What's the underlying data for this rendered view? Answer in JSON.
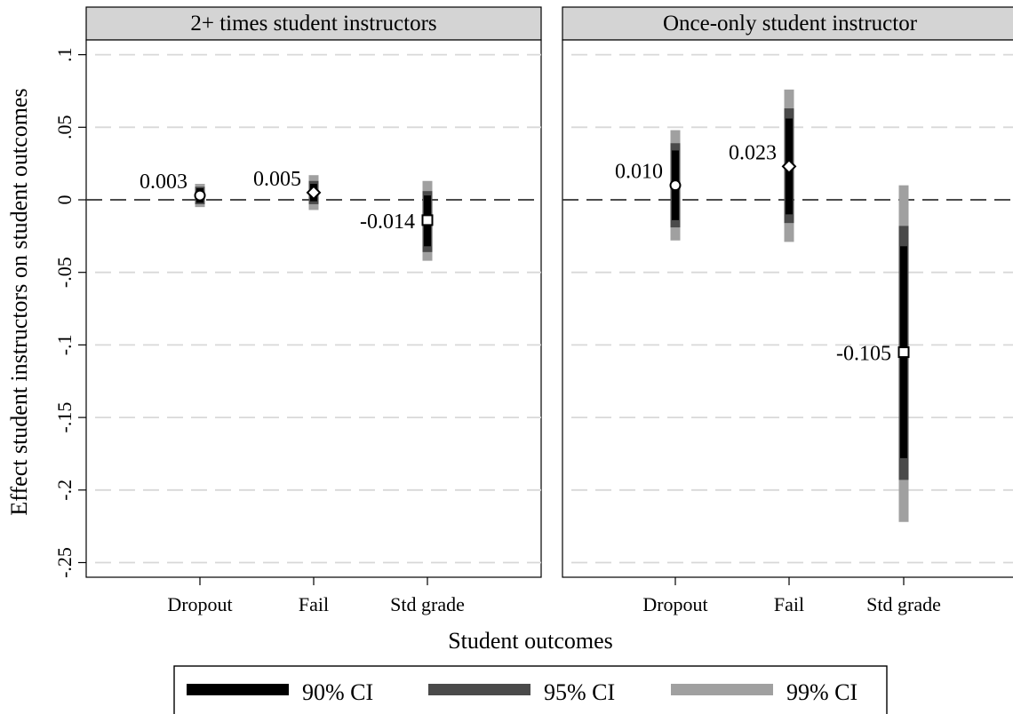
{
  "chart_data": {
    "type": "scatter",
    "ylabel": "Effect student instructors on student outcomes",
    "xlabel": "Student outcomes",
    "categories": [
      "Dropout",
      "Fail",
      "Std grade"
    ],
    "yticks": [
      ".1",
      ".05",
      "0",
      "-.05",
      "-.1",
      "-.15",
      "-.2",
      "-.25"
    ],
    "ylim": [
      -0.26,
      0.11
    ],
    "grid": true,
    "legend_position": "bottom",
    "legend": [
      {
        "label": "90% CI",
        "color": "#000000"
      },
      {
        "label": "95% CI",
        "color": "#4a4a4a"
      },
      {
        "label": "99% CI",
        "color": "#a0a0a0"
      }
    ],
    "panels": [
      {
        "title": "2+ times student instructors",
        "points": [
          {
            "category": "Dropout",
            "marker": "circle",
            "estimate": 0.003,
            "label": "0.003",
            "ci90": [
              -0.002,
              0.008
            ],
            "ci95": [
              -0.003,
              0.009
            ],
            "ci99": [
              -0.005,
              0.011
            ]
          },
          {
            "category": "Fail",
            "marker": "diamond",
            "estimate": 0.005,
            "label": "0.005",
            "ci90": [
              -0.001,
              0.011
            ],
            "ci95": [
              -0.003,
              0.013
            ],
            "ci99": [
              -0.007,
              0.017
            ]
          },
          {
            "category": "Std grade",
            "marker": "square",
            "estimate": -0.014,
            "label": "-0.014",
            "ci90": [
              -0.032,
              0.003
            ],
            "ci95": [
              -0.036,
              0.006
            ],
            "ci99": [
              -0.042,
              0.013
            ]
          }
        ]
      },
      {
        "title": "Once-only student instructor",
        "points": [
          {
            "category": "Dropout",
            "marker": "circle",
            "estimate": 0.01,
            "label": "0.010",
            "ci90": [
              -0.014,
              0.034
            ],
            "ci95": [
              -0.019,
              0.039
            ],
            "ci99": [
              -0.028,
              0.048
            ]
          },
          {
            "category": "Fail",
            "marker": "diamond",
            "estimate": 0.023,
            "label": "0.023",
            "ci90": [
              -0.01,
              0.056
            ],
            "ci95": [
              -0.016,
              0.063
            ],
            "ci99": [
              -0.029,
              0.076
            ]
          },
          {
            "category": "Std grade",
            "marker": "square",
            "estimate": -0.105,
            "label": "-0.105",
            "ci90": [
              -0.178,
              -0.032
            ],
            "ci95": [
              -0.193,
              -0.018
            ],
            "ci99": [
              -0.222,
              0.01
            ]
          }
        ]
      }
    ]
  }
}
